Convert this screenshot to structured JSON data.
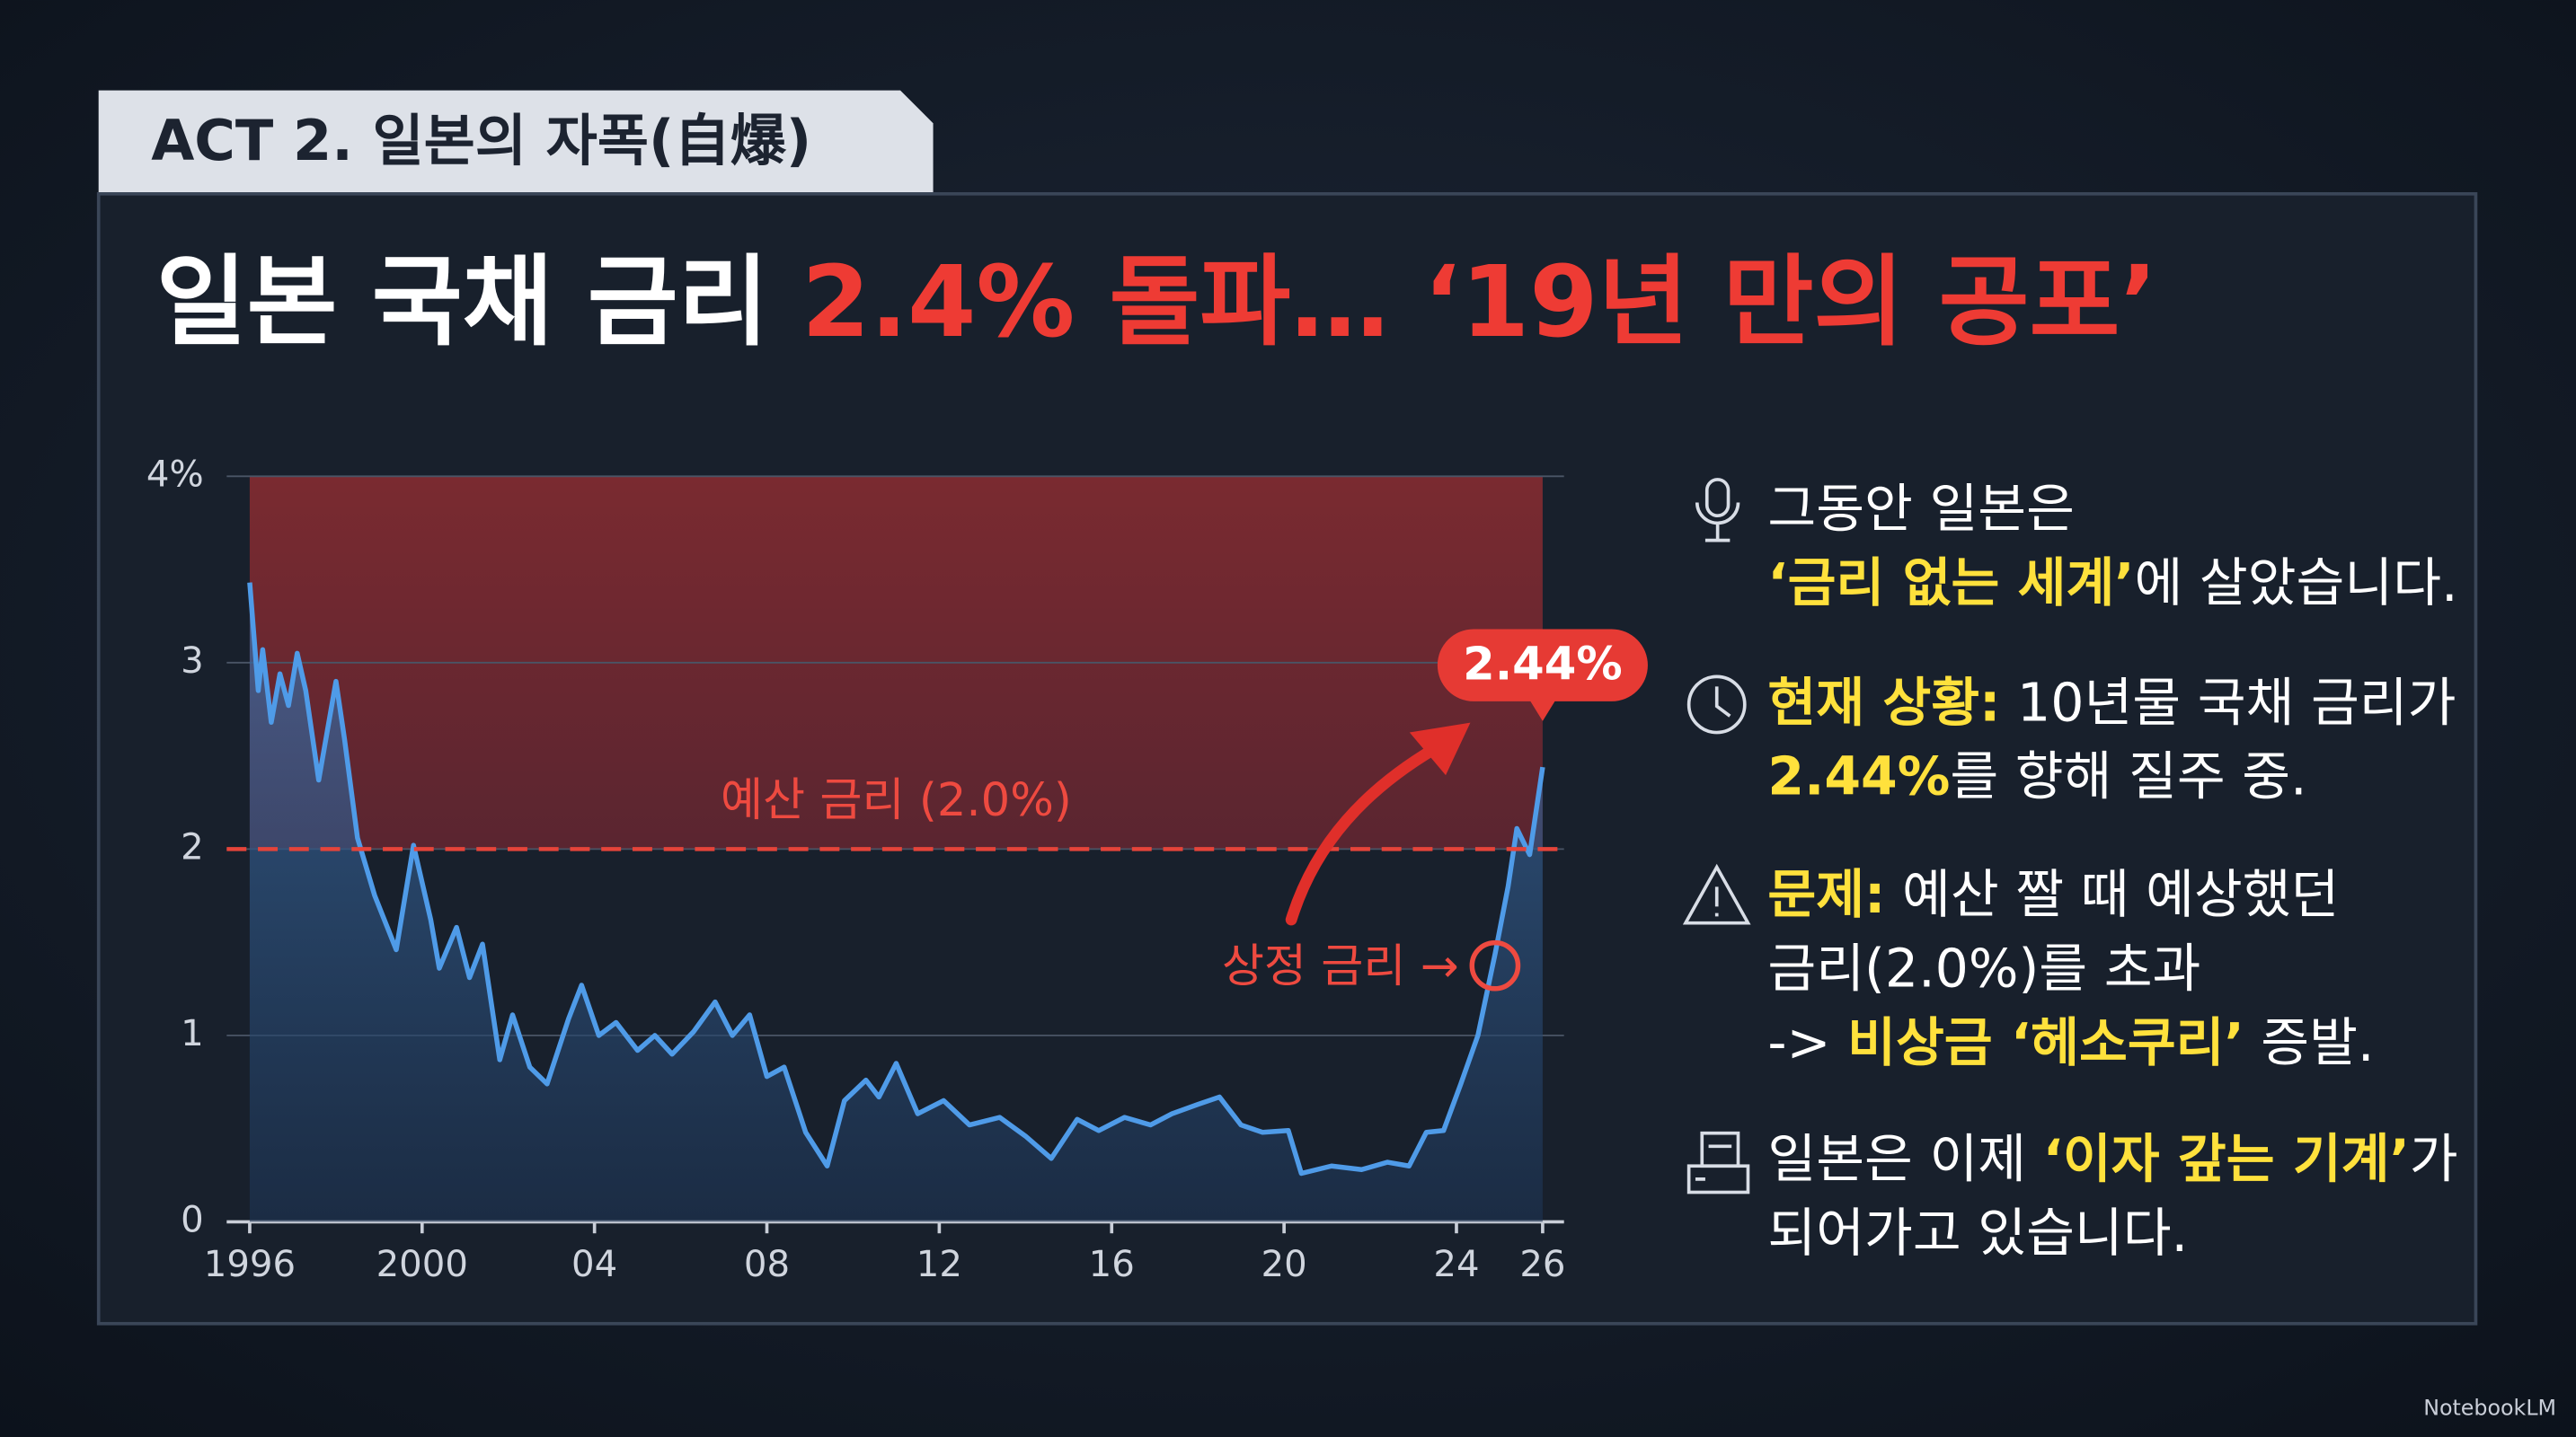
{
  "header": {
    "tag": "ACT 2. 일본의 자폭(自爆)",
    "title": [
      "일본 국채 금리",
      "2.4% 돌파… ‘19년 만의 공포’"
    ]
  },
  "chart_data": {
    "type": "line",
    "x": [
      1996.0,
      1996.2,
      1996.3,
      1996.5,
      1996.7,
      1996.9,
      1997.1,
      1997.3,
      1997.6,
      1998.0,
      1998.2,
      1998.5,
      1998.9,
      1999.4,
      1999.8,
      2000.2,
      2000.4,
      2000.8,
      2001.1,
      2001.4,
      2001.8,
      2002.1,
      2002.5,
      2002.9,
      2003.4,
      2003.7,
      2004.1,
      2004.5,
      2005.0,
      2005.4,
      2005.8,
      2006.3,
      2006.8,
      2007.2,
      2007.6,
      2008.0,
      2008.4,
      2008.9,
      2009.4,
      2009.8,
      2010.3,
      2010.6,
      2011.0,
      2011.5,
      2012.1,
      2012.7,
      2013.4,
      2014.0,
      2014.6,
      2015.2,
      2015.7,
      2016.3,
      2016.9,
      2017.4,
      2018.0,
      2018.5,
      2019.0,
      2019.5,
      2020.1,
      2020.4,
      2021.1,
      2021.8,
      2022.4,
      2022.9,
      2023.3,
      2023.7,
      2024.1,
      2024.5,
      2024.9,
      2025.2,
      2025.4,
      2025.7,
      2026.0
    ],
    "series": [
      {
        "color": "#4f9be8",
        "values": [
          3.43,
          2.85,
          3.07,
          2.68,
          2.94,
          2.77,
          3.05,
          2.85,
          2.37,
          2.9,
          2.59,
          2.06,
          1.75,
          1.46,
          2.02,
          1.62,
          1.36,
          1.58,
          1.31,
          1.49,
          0.87,
          1.11,
          0.83,
          0.74,
          1.09,
          1.27,
          1.0,
          1.07,
          0.92,
          1.0,
          0.9,
          1.02,
          1.18,
          1.0,
          1.11,
          0.78,
          0.83,
          0.48,
          0.3,
          0.65,
          0.76,
          0.67,
          0.85,
          0.58,
          0.65,
          0.52,
          0.56,
          0.46,
          0.34,
          0.55,
          0.49,
          0.56,
          0.52,
          0.58,
          0.63,
          0.67,
          0.52,
          0.48,
          0.49,
          0.26,
          0.3,
          0.28,
          0.32,
          0.3,
          0.48,
          0.49,
          0.74,
          1.0,
          1.44,
          1.8,
          2.11,
          1.97,
          2.44
        ]
      }
    ],
    "xlim": [
      1996,
      2026
    ],
    "xticks": [
      1996,
      2000,
      {
        "value": 2004,
        "label": "04"
      },
      {
        "value": 2008,
        "label": "08"
      },
      {
        "value": 2012,
        "label": "12"
      },
      {
        "value": 2016,
        "label": "16"
      },
      {
        "value": 2020,
        "label": "20"
      },
      {
        "value": 2024,
        "label": "24"
      },
      {
        "value": 2026,
        "label": "26"
      }
    ],
    "ylim": [
      0,
      4
    ],
    "yticks": [
      0,
      1,
      2,
      3,
      {
        "value": 4,
        "label": "4%"
      }
    ],
    "grid": true,
    "ref_line": {
      "value": 2.0,
      "label": "예산 금리 (2.0%)",
      "color": "#e5443a"
    },
    "annotations": [
      "2.44%",
      "상정 금리 →"
    ]
  },
  "notes": [
    [
      [
        "그동안 일본은"
      ],
      [
        {
          "text": "‘금리 없는 세계’",
          "color": "#ffe13c"
        },
        "에 살았습니다."
      ]
    ],
    [
      [
        {
          "text": "현재 상황:",
          "color": "#ffe13c"
        },
        " 10년물 국채 금리가"
      ],
      [
        {
          "text": "2.44%",
          "color": "#ffe13c"
        },
        "를 향해 질주 중."
      ]
    ],
    [
      [
        {
          "text": "문제:",
          "color": "#ffe13c"
        },
        " 예산 짤 때 예상했던"
      ],
      [
        "금리(2.0%)를 초과"
      ],
      [
        "-> ",
        {
          "text": "비상금 ‘헤소쿠리’",
          "color": "#ffe13c"
        },
        " 증발."
      ]
    ],
    [
      [
        "일본은 이제 ",
        {
          "text": "‘이자 갚는 기계’",
          "color": "#ffe13c"
        },
        "가"
      ],
      [
        "되어가고 있습니다."
      ]
    ]
  ],
  "watermark": "NotebookLM"
}
